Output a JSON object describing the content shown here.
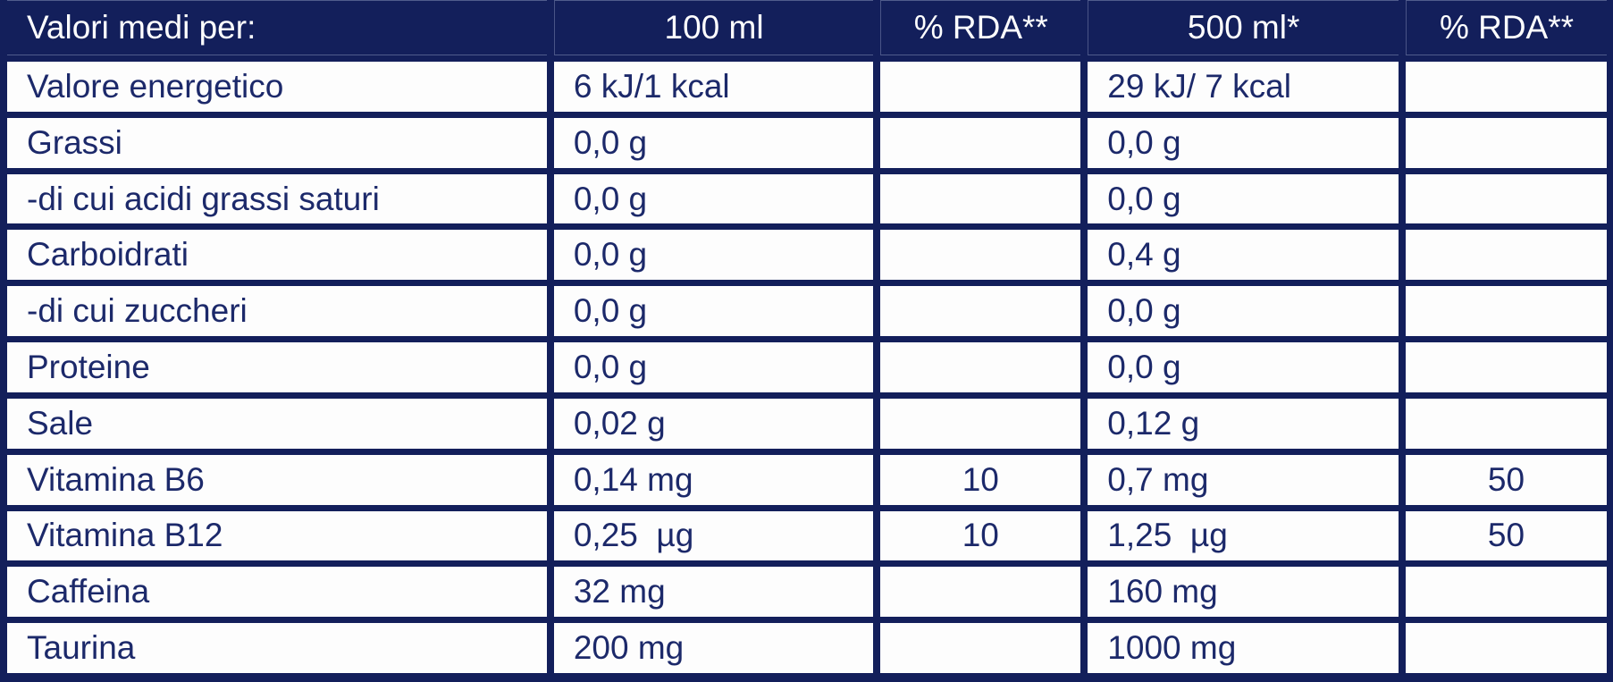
{
  "colors": {
    "navy": "#131f5b",
    "cell_background": "#fdfdfd",
    "header_text": "#ffffff",
    "body_text": "#1c296a"
  },
  "table": {
    "header": {
      "label": "Valori medi per:",
      "per_100ml": "100 ml",
      "rda_100ml": "% RDA**",
      "per_500ml": "500 ml*",
      "rda_500ml": "% RDA**"
    },
    "rows": [
      {
        "label": "Valore energetico",
        "per_100ml": "6 kJ/1 kcal",
        "rda_100ml": "",
        "per_500ml": "29 kJ/ 7 kcal",
        "rda_500ml": ""
      },
      {
        "label": "Grassi",
        "per_100ml": "0,0 g",
        "rda_100ml": "",
        "per_500ml": "0,0 g",
        "rda_500ml": ""
      },
      {
        "label": "-di cui acidi grassi saturi",
        "per_100ml": "0,0 g",
        "rda_100ml": "",
        "per_500ml": "0,0 g",
        "rda_500ml": ""
      },
      {
        "label": "Carboidrati",
        "per_100ml": "0,0 g",
        "rda_100ml": "",
        "per_500ml": "0,4 g",
        "rda_500ml": ""
      },
      {
        "label": "-di cui zuccheri",
        "per_100ml": "0,0 g",
        "rda_100ml": "",
        "per_500ml": "0,0 g",
        "rda_500ml": ""
      },
      {
        "label": "Proteine",
        "per_100ml": "0,0 g",
        "rda_100ml": "",
        "per_500ml": "0,0 g",
        "rda_500ml": ""
      },
      {
        "label": "Sale",
        "per_100ml": "0,02 g",
        "rda_100ml": "",
        "per_500ml": "0,12 g",
        "rda_500ml": ""
      },
      {
        "label": "Vitamina B6",
        "per_100ml": "0,14 mg",
        "rda_100ml": "10",
        "per_500ml": "0,7 mg",
        "rda_500ml": "50"
      },
      {
        "label": "Vitamina B12",
        "per_100ml": "0,25  µg",
        "rda_100ml": "10",
        "per_500ml": "1,25  µg",
        "rda_500ml": "50"
      },
      {
        "label": "Caffeina",
        "per_100ml": "32 mg",
        "rda_100ml": "",
        "per_500ml": "160 mg",
        "rda_500ml": ""
      },
      {
        "label": "Taurina",
        "per_100ml": "200 mg",
        "rda_100ml": "",
        "per_500ml": "1000 mg",
        "rda_500ml": ""
      }
    ]
  }
}
